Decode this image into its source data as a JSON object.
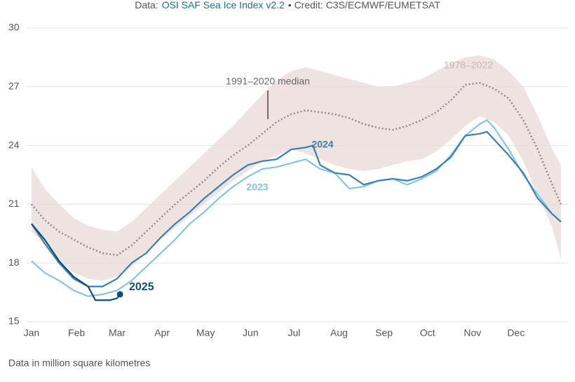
{
  "chart_data": {
    "type": "line",
    "source_prefix": "Data:",
    "source_name": "OSI SAF Sea Ice Index v2.2",
    "credit": "• Credit: C3S/ECMWF/EUMETSAT",
    "note": "Data in million square kilometres",
    "xlim": [
      1,
      366
    ],
    "xticks": [
      {
        "value": 1,
        "label": "Jan"
      },
      {
        "value": 32,
        "label": "Feb"
      },
      {
        "value": 60,
        "label": "Mar"
      },
      {
        "value": 91,
        "label": "Apr"
      },
      {
        "value": 121,
        "label": "May"
      },
      {
        "value": 152,
        "label": "Jun"
      },
      {
        "value": 182,
        "label": "Jul"
      },
      {
        "value": 213,
        "label": "Aug"
      },
      {
        "value": 244,
        "label": "Sep"
      },
      {
        "value": 274,
        "label": "Oct"
      },
      {
        "value": 305,
        "label": "Nov"
      },
      {
        "value": 335,
        "label": "Dec"
      }
    ],
    "ylim": [
      15,
      30
    ],
    "yticks": [
      15,
      18,
      21,
      24,
      27,
      30
    ],
    "grid": true,
    "series": [
      {
        "name": "1978–2022",
        "kind": "range",
        "color": "#e8d9d5",
        "x": [
          1,
          10,
          20,
          30,
          40,
          50,
          60,
          70,
          80,
          90,
          100,
          110,
          120,
          130,
          140,
          150,
          160,
          170,
          180,
          190,
          200,
          210,
          220,
          230,
          240,
          250,
          260,
          270,
          280,
          290,
          300,
          310,
          320,
          330,
          340,
          350,
          360,
          366
        ],
        "high": [
          22.9,
          21.8,
          21.0,
          20.3,
          19.9,
          19.7,
          19.6,
          20.1,
          20.8,
          21.5,
          22.2,
          22.9,
          23.6,
          24.3,
          25.0,
          25.8,
          26.6,
          27.3,
          27.8,
          28.0,
          27.8,
          27.6,
          27.4,
          27.2,
          27.0,
          27.0,
          27.2,
          27.4,
          27.8,
          28.2,
          28.5,
          28.6,
          28.4,
          27.8,
          27.0,
          25.5,
          23.8,
          23.0
        ],
        "low": [
          19.6,
          19.0,
          18.2,
          17.5,
          17.2,
          17.1,
          17.3,
          17.8,
          18.5,
          19.2,
          19.8,
          20.4,
          21.0,
          21.6,
          22.2,
          22.7,
          23.2,
          23.5,
          23.8,
          23.6,
          23.3,
          23.0,
          22.8,
          22.7,
          22.8,
          23.0,
          23.2,
          23.3,
          23.7,
          24.3,
          25.0,
          25.5,
          25.2,
          24.5,
          23.2,
          21.5,
          19.8,
          18.2
        ]
      },
      {
        "name": "1991–2020 median",
        "kind": "median",
        "color": "#8a8a8a",
        "x": [
          1,
          10,
          20,
          30,
          40,
          50,
          60,
          70,
          80,
          90,
          100,
          110,
          120,
          130,
          140,
          150,
          160,
          170,
          180,
          190,
          200,
          210,
          220,
          230,
          240,
          250,
          260,
          270,
          280,
          290,
          300,
          310,
          320,
          330,
          340,
          350,
          360,
          366
        ],
        "values": [
          21.0,
          20.2,
          19.6,
          19.2,
          18.8,
          18.5,
          18.4,
          18.9,
          19.6,
          20.3,
          21.0,
          21.6,
          22.2,
          22.9,
          23.5,
          24.0,
          24.6,
          25.2,
          25.6,
          25.8,
          25.7,
          25.6,
          25.4,
          25.1,
          24.9,
          24.8,
          25.0,
          25.3,
          25.7,
          26.3,
          27.1,
          27.2,
          26.9,
          26.4,
          25.3,
          23.8,
          22.0,
          21.0
        ]
      },
      {
        "name": "2023",
        "color": "#86c3ea",
        "x": [
          1,
          10,
          20,
          30,
          40,
          50,
          60,
          70,
          80,
          90,
          100,
          110,
          120,
          130,
          140,
          150,
          160,
          170,
          180,
          190,
          200,
          210,
          220,
          230,
          240,
          250,
          260,
          270,
          280,
          290,
          300,
          310,
          315,
          320,
          330,
          340,
          350,
          360,
          366
        ],
        "values": [
          18.1,
          17.5,
          17.1,
          16.6,
          16.3,
          16.4,
          16.6,
          17.1,
          17.8,
          18.5,
          19.2,
          20.0,
          20.6,
          21.3,
          21.9,
          22.4,
          22.8,
          22.9,
          23.1,
          23.3,
          22.8,
          22.6,
          21.8,
          21.9,
          22.2,
          22.3,
          22.0,
          22.3,
          22.7,
          23.5,
          24.5,
          25.1,
          25.3,
          24.9,
          23.8,
          22.5,
          21.5,
          20.5,
          20.1
        ]
      },
      {
        "name": "2024",
        "color": "#3c7fb3",
        "x": [
          1,
          10,
          20,
          30,
          40,
          50,
          60,
          70,
          80,
          90,
          100,
          110,
          120,
          130,
          140,
          150,
          160,
          170,
          180,
          190,
          195,
          200,
          210,
          220,
          230,
          240,
          250,
          260,
          270,
          280,
          290,
          300,
          310,
          315,
          320,
          330,
          340,
          350,
          360,
          366
        ],
        "values": [
          20.0,
          19.0,
          18.0,
          17.2,
          16.8,
          16.8,
          17.2,
          18.0,
          18.5,
          19.3,
          20.0,
          20.6,
          21.3,
          21.9,
          22.5,
          23.0,
          23.2,
          23.3,
          23.8,
          23.9,
          24.0,
          23.0,
          22.6,
          22.5,
          22.0,
          22.2,
          22.3,
          22.2,
          22.4,
          22.8,
          23.4,
          24.5,
          24.6,
          24.7,
          24.3,
          23.5,
          22.6,
          21.3,
          20.5,
          20.1
        ]
      },
      {
        "name": "2025",
        "color": "#0e4e78",
        "end_dot": true,
        "x": [
          1,
          10,
          20,
          30,
          40,
          45,
          50,
          55,
          60,
          62
        ],
        "values": [
          20.0,
          19.2,
          18.1,
          17.3,
          16.8,
          16.1,
          16.1,
          16.1,
          16.2,
          16.4
        ]
      }
    ]
  }
}
